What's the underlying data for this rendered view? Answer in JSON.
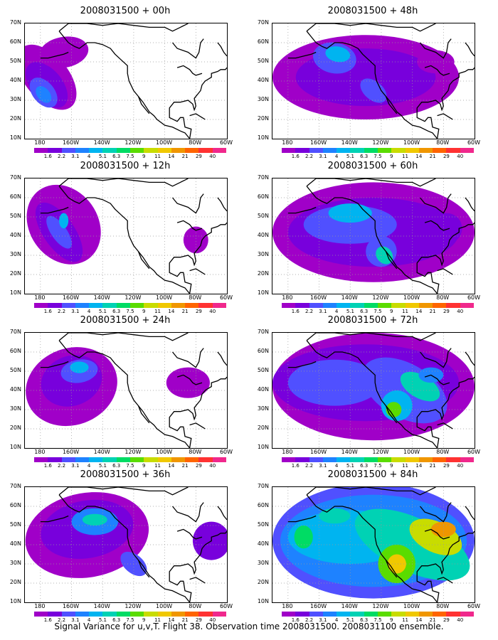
{
  "panels": [
    {
      "title": "2008031500 + 00h"
    },
    {
      "title": "2008031500 + 48h"
    },
    {
      "title": "2008031500 + 12h"
    },
    {
      "title": "2008031500 + 60h"
    },
    {
      "title": "2008031500 + 24h"
    },
    {
      "title": "2008031500 + 72h"
    },
    {
      "title": "2008031500 + 36h"
    },
    {
      "title": "2008031500 + 84h"
    }
  ],
  "lat_labels": [
    "70N",
    "60N",
    "50N",
    "40N",
    "30N",
    "20N",
    "10N"
  ],
  "lon_labels": [
    "180",
    "160W",
    "140W",
    "120W",
    "100W",
    "80W",
    "60W"
  ],
  "colorbar": {
    "labels": [
      "1.6",
      "2.2",
      "3.1",
      "4",
      "5.1",
      "6.3",
      "7.5",
      "9",
      "11",
      "14",
      "21",
      "29",
      "40"
    ],
    "colors": [
      "#a000c8",
      "#7800dc",
      "#5050ff",
      "#1e82ff",
      "#00b4f0",
      "#00d2b4",
      "#00dc64",
      "#5adc00",
      "#c8dc00",
      "#f0c800",
      "#f09600",
      "#ff6400",
      "#ff3232",
      "#f0288c"
    ]
  },
  "footer": "Signal Variance for u,v,T. Flight 38. Observation time 2008031500. 2008031100 ensemble."
}
